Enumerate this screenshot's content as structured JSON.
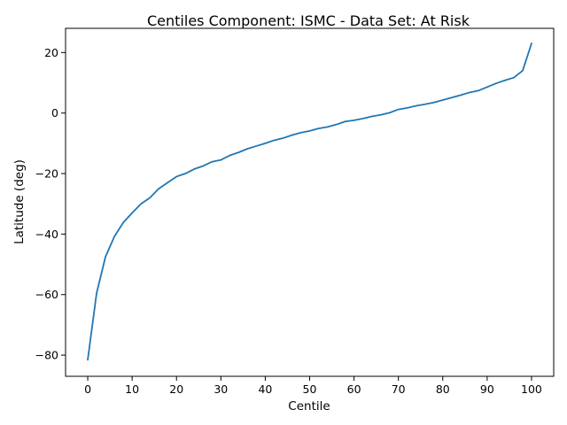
{
  "chart_data": {
    "type": "line",
    "title": "Centiles Component: ISMC - Data Set: At Risk",
    "xlabel": "Centile",
    "ylabel": "Latitude (deg)",
    "xlim": [
      -5,
      105
    ],
    "ylim": [
      -87,
      28
    ],
    "xticks": [
      0,
      10,
      20,
      30,
      40,
      50,
      60,
      70,
      80,
      90,
      100
    ],
    "yticks": [
      -80,
      -60,
      -40,
      -20,
      0,
      20
    ],
    "grid": false,
    "line_color": "#1f77b4",
    "series": [
      {
        "x": [
          0,
          2,
          4,
          6,
          8,
          10,
          12,
          14,
          16,
          18,
          20,
          22,
          24,
          26,
          28,
          30,
          32,
          34,
          36,
          38,
          40,
          42,
          44,
          46,
          48,
          50,
          52,
          54,
          56,
          58,
          60,
          62,
          64,
          66,
          68,
          70,
          72,
          74,
          76,
          78,
          80,
          82,
          84,
          86,
          88,
          90,
          92,
          94,
          96,
          98,
          100
        ],
        "values": [
          -81.5,
          -59.5,
          -47.5,
          -40.8,
          -36.2,
          -33.0,
          -30.0,
          -28.0,
          -25.0,
          -23.0,
          -21.0,
          -20.0,
          -18.5,
          -17.5,
          -16.1,
          -15.5,
          -14.0,
          -13.0,
          -11.8,
          -10.9,
          -10.0,
          -9.0,
          -8.3,
          -7.3,
          -6.5,
          -5.9,
          -5.1,
          -4.6,
          -3.8,
          -2.8,
          -2.4,
          -1.8,
          -1.1,
          -0.6,
          0.1,
          1.2,
          1.7,
          2.4,
          2.9,
          3.5,
          4.3,
          5.1,
          5.9,
          6.8,
          7.4,
          8.6,
          9.8,
          10.8,
          11.7,
          14.0,
          23.0
        ]
      }
    ]
  }
}
